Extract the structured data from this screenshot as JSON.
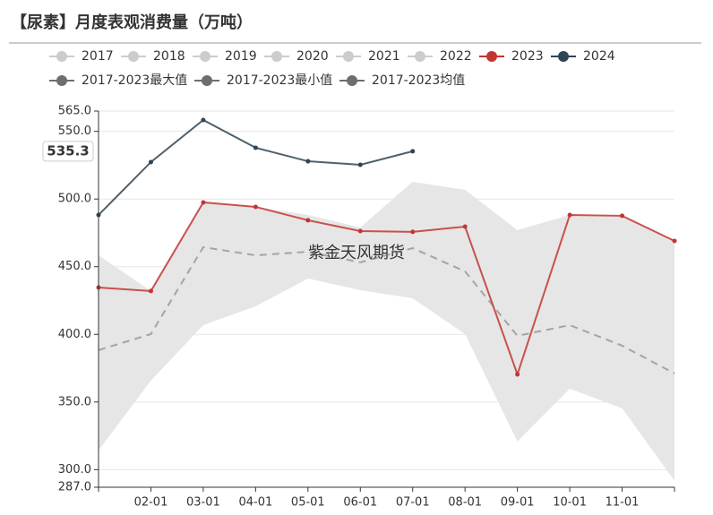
{
  "chart_data": {
    "type": "line",
    "title": "【尿素】月度表观消费量（万吨）",
    "watermark": "紫金天风期货",
    "cursor_label": "535.3",
    "categories": [
      null,
      "02-01",
      "03-01",
      "04-01",
      "05-01",
      "06-01",
      "07-01",
      "08-01",
      "09-01",
      "10-01",
      "11-01",
      null
    ],
    "ylim": [
      287,
      565
    ],
    "yticks": [
      {
        "value": 287,
        "label": "287.0"
      },
      {
        "value": 300,
        "label": "300.0"
      },
      {
        "value": 350,
        "label": "350.0"
      },
      {
        "value": 400,
        "label": "400.0"
      },
      {
        "value": 450,
        "label": "450.0"
      },
      {
        "value": 500,
        "label": "500.0"
      },
      {
        "value": 550,
        "label": "550.0"
      },
      {
        "value": 565,
        "label": "565.0"
      }
    ],
    "grid": true,
    "legend_hidden": [
      {
        "name": "2017",
        "color": "#cccccc"
      },
      {
        "name": "2018",
        "color": "#cccccc"
      },
      {
        "name": "2019",
        "color": "#cccccc"
      },
      {
        "name": "2020",
        "color": "#cccccc"
      },
      {
        "name": "2021",
        "color": "#cccccc"
      },
      {
        "name": "2022",
        "color": "#cccccc"
      }
    ],
    "series": [
      {
        "name": "2023",
        "color": "#c23531",
        "style": "line",
        "values": [
          434.6,
          432.0,
          497.5,
          494.2,
          484.3,
          476.3,
          475.7,
          479.6,
          370.4,
          488.2,
          487.6,
          469.0
        ]
      },
      {
        "name": "2024",
        "color": "#2f4554",
        "style": "line",
        "values": [
          488.2,
          527.3,
          558.4,
          537.9,
          527.9,
          525.3,
          535.3,
          null,
          null,
          null,
          null,
          null
        ]
      },
      {
        "name": "2017-2023最大值",
        "color": "#6e6e6e",
        "style": "area_max",
        "values": [
          458.4,
          432.0,
          497.5,
          494.2,
          488.2,
          479.0,
          512.7,
          506.8,
          477.0,
          488.2,
          487.6,
          469.0
        ]
      },
      {
        "name": "2017-2023最小值",
        "color": "#6e6e6e",
        "style": "area_min",
        "values": [
          314.2,
          365.8,
          406.8,
          420.7,
          441.2,
          432.6,
          426.7,
          400.2,
          320.8,
          359.8,
          345.3,
          291.7
        ]
      },
      {
        "name": "2017-2023均值",
        "color": "#6e6e6e",
        "style": "dashed",
        "values": [
          388.3,
          400.2,
          464.4,
          458.4,
          461.0,
          453.2,
          463.7,
          446.5,
          398.9,
          406.8,
          391.6,
          371.1
        ]
      }
    ]
  }
}
